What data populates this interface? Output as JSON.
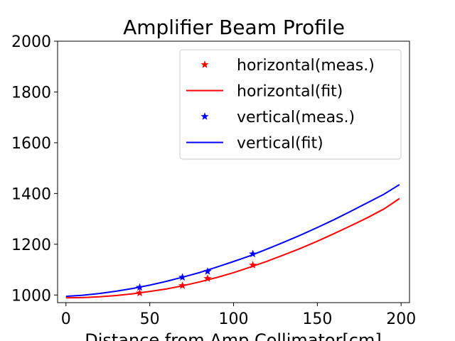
{
  "chart_data": {
    "type": "line",
    "title": "Amplifier Beam Profile",
    "xlabel": "Distance from Amp Collimator[cm]",
    "ylabel": "",
    "xlim": [
      -5,
      205
    ],
    "ylim": [
      970,
      2000
    ],
    "xticks": [
      0,
      50,
      100,
      150,
      200
    ],
    "yticks": [
      1000,
      1200,
      1400,
      1600,
      1800,
      2000
    ],
    "grid": false,
    "legend_position": "top-right",
    "series": [
      {
        "name": "horizontal(meas.)",
        "kind": "scatter",
        "marker": "star",
        "color": "#ff0000",
        "x": [
          44,
          69.5,
          84.5,
          111.5
        ],
        "y": [
          1008,
          1037,
          1065,
          1118
        ]
      },
      {
        "name": "horizontal(fit)",
        "kind": "line",
        "color": "#ff0000",
        "x": [
          0,
          10,
          20,
          30,
          40,
          50,
          60,
          70,
          80,
          90,
          100,
          110,
          120,
          130,
          140,
          150,
          160,
          170,
          180,
          190,
          199
        ],
        "y": [
          989,
          990,
          993,
          998,
          1005,
          1014,
          1024,
          1037,
          1052,
          1069,
          1088,
          1110,
          1133,
          1158,
          1184,
          1212,
          1242,
          1273,
          1305,
          1340,
          1380
        ]
      },
      {
        "name": "vertical(meas.)",
        "kind": "scatter",
        "marker": "star",
        "color": "#0000ff",
        "x": [
          44,
          69.5,
          84.5,
          111.5
        ],
        "y": [
          1030,
          1070,
          1093,
          1162
        ]
      },
      {
        "name": "vertical(fit)",
        "kind": "line",
        "color": "#0000ff",
        "x": [
          0,
          10,
          20,
          30,
          40,
          50,
          60,
          70,
          80,
          90,
          100,
          110,
          120,
          130,
          140,
          150,
          160,
          170,
          180,
          190,
          199
        ],
        "y": [
          995,
          999,
          1006,
          1015,
          1026,
          1039,
          1054,
          1071,
          1089,
          1110,
          1132,
          1155,
          1181,
          1208,
          1236,
          1266,
          1297,
          1330,
          1364,
          1398,
          1435
        ]
      }
    ]
  }
}
